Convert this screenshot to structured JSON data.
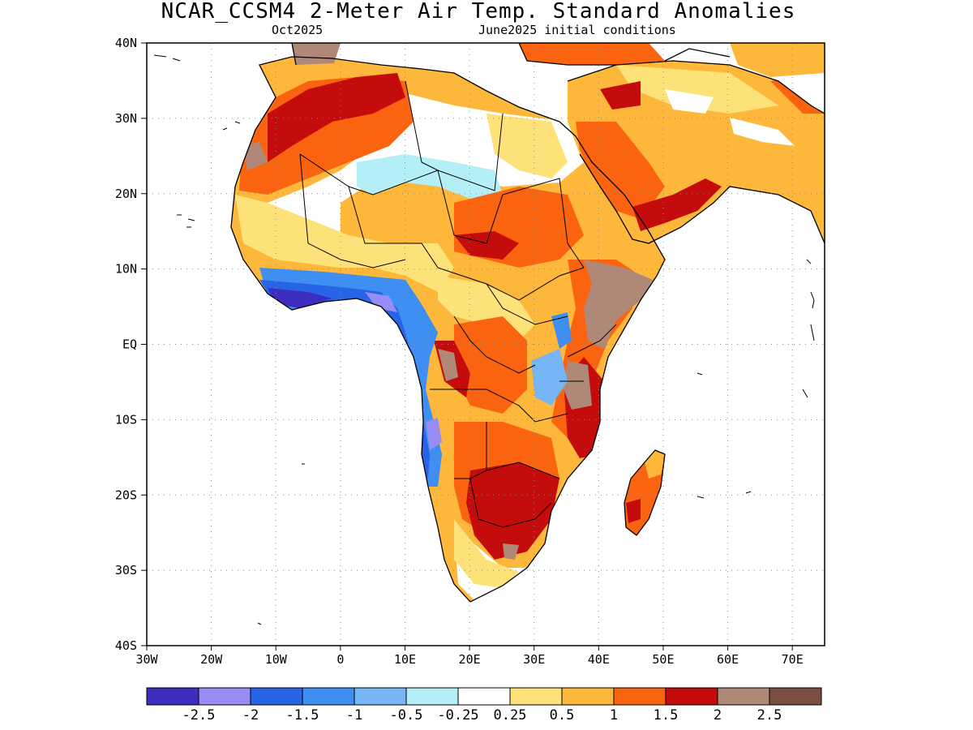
{
  "title": "NCAR_CCSM4 2-Meter Air Temp. Standard Anomalies",
  "subtitle_left": "Oct2025",
  "subtitle_right": "June2025 initial conditions",
  "map": {
    "lon_range": [
      -30,
      75
    ],
    "lat_range": [
      -40,
      40
    ],
    "lat_labels": [
      {
        "lat": 40,
        "text": "40N"
      },
      {
        "lat": 30,
        "text": "30N"
      },
      {
        "lat": 20,
        "text": "20N"
      },
      {
        "lat": 10,
        "text": "10N"
      },
      {
        "lat": 0,
        "text": "EQ"
      },
      {
        "lat": -10,
        "text": "10S"
      },
      {
        "lat": -20,
        "text": "20S"
      },
      {
        "lat": -30,
        "text": "30S"
      },
      {
        "lat": -40,
        "text": "40S"
      }
    ],
    "lon_labels": [
      {
        "lon": -30,
        "text": "30W"
      },
      {
        "lon": -20,
        "text": "20W"
      },
      {
        "lon": -10,
        "text": "10W"
      },
      {
        "lon": 0,
        "text": "0"
      },
      {
        "lon": 10,
        "text": "10E"
      },
      {
        "lon": 20,
        "text": "20E"
      },
      {
        "lon": 30,
        "text": "30E"
      },
      {
        "lon": 40,
        "text": "40E"
      },
      {
        "lon": 50,
        "text": "50E"
      },
      {
        "lon": 60,
        "text": "60E"
      },
      {
        "lon": 70,
        "text": "70E"
      }
    ],
    "grid": "dotted"
  },
  "colorbar": {
    "colors": [
      "#3c2fbf",
      "#9a8cf5",
      "#2864e6",
      "#3f8ff2",
      "#77b6f5",
      "#b4eef7",
      "#ffffff",
      "#fde27a",
      "#fdb83c",
      "#fa6410",
      "#c40c0c",
      "#b08878",
      "#7a4e40"
    ],
    "labels": [
      "-2.5",
      "-2",
      "-1.5",
      "-1",
      "-0.5",
      "-0.25",
      "0.25",
      "0.5",
      "1",
      "1.5",
      "2",
      "2.5"
    ]
  }
}
